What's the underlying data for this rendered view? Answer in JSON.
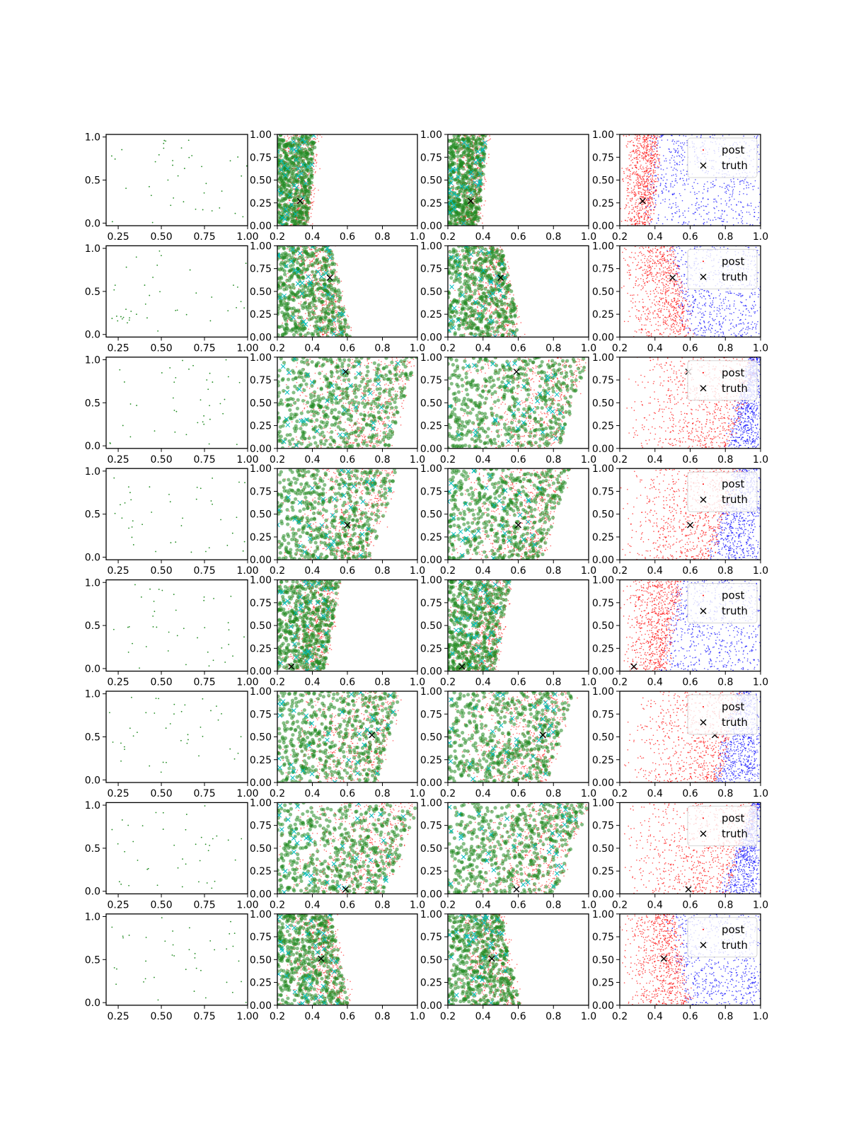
{
  "colors": {
    "accepted": "#228b22",
    "posterior": "#ff0000",
    "cyan_marker": "#00bfbf",
    "blue_points": "#0000ff",
    "truth_marker": "#000000"
  },
  "legend": {
    "post_label": "post",
    "truth_label": "truth"
  },
  "chart_data": {
    "type": "scatter",
    "layout": "grid of 8 rows x 4 columns",
    "grid": false,
    "columns": [
      {
        "xlim": [
          0.18,
          1.0
        ],
        "ylim": [
          -0.03,
          1.03
        ],
        "xticks": [
          "0.25",
          "0.50",
          "0.75",
          "1.00"
        ],
        "yticks": [
          "0.0",
          "0.5",
          "1.0"
        ]
      },
      {
        "xlim": [
          0.2,
          1.0
        ],
        "ylim": [
          0.0,
          1.0
        ],
        "xticks": [
          "0.2",
          "0.4",
          "0.6",
          "0.8",
          "1.0"
        ],
        "yticks": [
          "0.00",
          "0.25",
          "0.50",
          "0.75",
          "1.00"
        ]
      },
      {
        "xlim": [
          0.2,
          1.0
        ],
        "ylim": [
          0.0,
          1.0
        ],
        "xticks": [
          "0.2",
          "0.4",
          "0.6",
          "0.8",
          "1.0"
        ],
        "yticks": [
          "0.00",
          "0.25",
          "0.50",
          "0.75",
          "1.00"
        ]
      },
      {
        "xlim": [
          0.2,
          1.0
        ],
        "ylim": [
          0.0,
          1.0
        ],
        "xticks": [
          "0.2",
          "0.4",
          "0.6",
          "0.8",
          "1.0"
        ],
        "yticks": [
          "0.00",
          "0.25",
          "0.50",
          "0.75",
          "1.00"
        ]
      }
    ],
    "rows": [
      {
        "truth": [
          0.33,
          0.27
        ],
        "boundary_bottom": 0.37,
        "boundary_top": 0.42,
        "legend": "top-right"
      },
      {
        "truth": [
          0.5,
          0.65
        ],
        "boundary_bottom": 0.61,
        "boundary_top": 0.5,
        "legend": "top-right"
      },
      {
        "truth": [
          0.59,
          0.84
        ],
        "boundary_bottom": 0.82,
        "boundary_top": 0.98,
        "legend": "top-right"
      },
      {
        "truth": [
          0.6,
          0.38
        ],
        "boundary_bottom": 0.72,
        "boundary_top": 0.88,
        "legend": "top-right"
      },
      {
        "truth": [
          0.28,
          0.05
        ],
        "boundary_bottom": 0.46,
        "boundary_top": 0.55,
        "legend": "top-right"
      },
      {
        "truth": [
          0.74,
          0.52
        ],
        "boundary_bottom": 0.76,
        "boundary_top": 0.9,
        "legend": "top-right"
      },
      {
        "truth": [
          0.59,
          0.05
        ],
        "boundary_bottom": 0.8,
        "boundary_top": 1.0,
        "legend": "top-right"
      },
      {
        "truth": [
          0.45,
          0.51
        ],
        "boundary_bottom": 0.6,
        "boundary_top": 0.5,
        "legend": "top-right"
      }
    ]
  }
}
